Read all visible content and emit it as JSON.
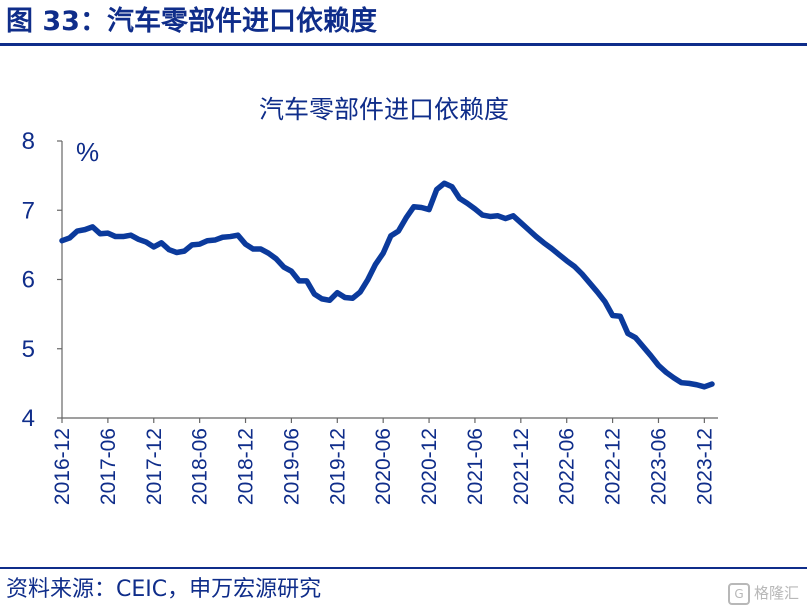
{
  "figure": {
    "label": "图 33：汽车零部件进口依赖度",
    "source": "资料来源：CEIC，申万宏源研究",
    "watermark": "格隆汇"
  },
  "colors": {
    "brand": "#0f2d8a",
    "line": "#0b3a9c"
  },
  "chart_data": {
    "type": "line",
    "title": "汽车零部件进口依赖度",
    "unit_label": "%",
    "xlabel": "",
    "ylabel": "",
    "ylim": [
      4,
      8
    ],
    "yticks": [
      4,
      5,
      6,
      7,
      8
    ],
    "x_tick_labels": [
      "2016-12",
      "2017-06",
      "2017-12",
      "2018-06",
      "2018-12",
      "2019-06",
      "2019-12",
      "2020-06",
      "2020-12",
      "2021-06",
      "2021-12",
      "2022-06",
      "2022-12",
      "2023-06",
      "2023-12"
    ],
    "series": [
      {
        "name": "汽车零部件进口依赖度",
        "values": [
          6.56,
          6.6,
          6.7,
          6.72,
          6.76,
          6.66,
          6.67,
          6.62,
          6.62,
          6.64,
          6.58,
          6.54,
          6.47,
          6.53,
          6.43,
          6.39,
          6.41,
          6.5,
          6.51,
          6.56,
          6.57,
          6.61,
          6.62,
          6.64,
          6.51,
          6.44,
          6.44,
          6.38,
          6.3,
          6.18,
          6.12,
          5.98,
          5.98,
          5.79,
          5.72,
          5.7,
          5.81,
          5.74,
          5.73,
          5.82,
          6.0,
          6.22,
          6.38,
          6.63,
          6.7,
          6.89,
          7.05,
          7.04,
          7.01,
          7.3,
          7.39,
          7.34,
          7.17,
          7.1,
          7.02,
          6.93,
          6.91,
          6.92,
          6.88,
          6.92,
          6.82,
          6.72,
          6.62,
          6.53,
          6.45,
          6.36,
          6.27,
          6.19,
          6.08,
          5.95,
          5.82,
          5.68,
          5.48,
          5.47,
          5.22,
          5.16,
          5.03,
          4.9,
          4.76,
          4.66,
          4.58,
          4.51,
          4.5,
          4.48,
          4.45,
          4.49
        ]
      }
    ]
  }
}
